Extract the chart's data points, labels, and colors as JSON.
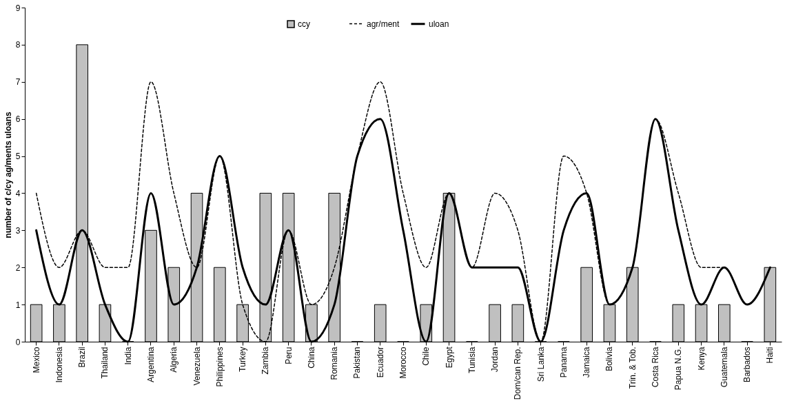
{
  "chart_data": {
    "type": "bar",
    "ylabel": "number of c/cy ag/ments uloans",
    "categories": [
      "Mexico",
      "Indonesia",
      "Brazil",
      "Thailand",
      "India",
      "Argentina",
      "Algeria",
      "Venezuela",
      "Philippines",
      "Turkey",
      "Zambia",
      "Peru",
      "China",
      "Romania",
      "Pakistan",
      "Ecuador",
      "Morocco",
      "Chile",
      "Egypt",
      "Tunisia",
      "Jordan",
      "Dom/can Rep.",
      "Sri Lanka",
      "Panama",
      "Jamaica",
      "Bolivia",
      "Trin. & Tob.",
      "Costa Rica",
      "Papua N.G.",
      "Kenya",
      "Guatemala",
      "Barbados",
      "Haiti"
    ],
    "series": [
      {
        "name": "ccy",
        "color": "#c0c0c0",
        "values": [
          1,
          1,
          8,
          1,
          0,
          3,
          2,
          4,
          2,
          1,
          4,
          4,
          1,
          4,
          0,
          1,
          0,
          1,
          4,
          0,
          1,
          1,
          0,
          0,
          2,
          1,
          2,
          0,
          1,
          1,
          1,
          0,
          2
        ]
      },
      {
        "name": "agr/ment",
        "type": "line",
        "line_style": "dashed",
        "color": "#000000",
        "values": [
          4,
          2,
          3,
          2,
          2,
          7,
          4,
          2,
          5,
          1,
          0,
          3,
          1,
          2,
          5,
          7,
          4,
          2,
          4,
          2,
          4,
          3,
          0,
          5,
          4,
          1,
          2,
          6,
          4,
          2,
          2,
          1,
          2
        ]
      },
      {
        "name": "uloan",
        "type": "line",
        "line_style": "solid",
        "color": "#000000",
        "values": [
          3,
          1,
          3,
          1,
          0,
          4,
          1,
          2,
          5,
          2,
          1,
          3,
          0,
          1,
          5,
          6,
          3,
          0,
          4,
          2,
          2,
          2,
          0,
          3,
          4,
          1,
          2,
          6,
          3,
          1,
          2,
          1,
          2
        ]
      }
    ],
    "ylim": [
      0,
      9
    ],
    "yticks": [
      0,
      1,
      2,
      3,
      4,
      5,
      6,
      7,
      8,
      9
    ],
    "grid": false,
    "legend": "top"
  }
}
